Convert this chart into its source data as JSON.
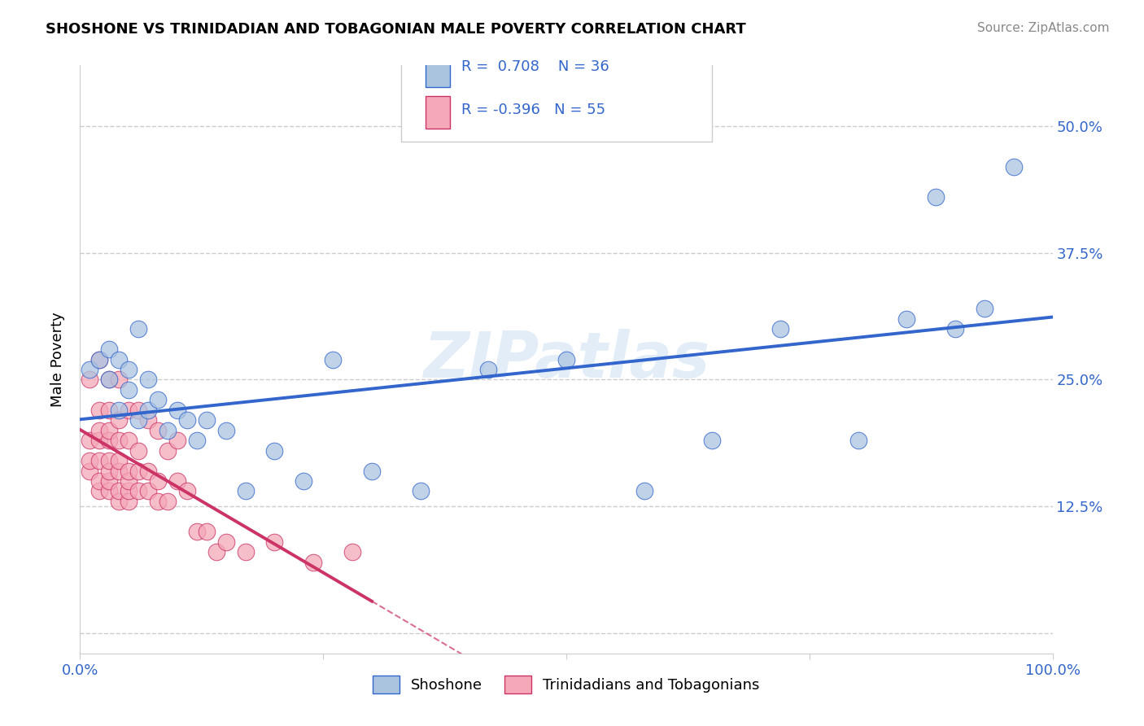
{
  "title": "SHOSHONE VS TRINIDADIAN AND TOBAGONIAN MALE POVERTY CORRELATION CHART",
  "source": "Source: ZipAtlas.com",
  "ylabel": "Male Poverty",
  "xlim": [
    0,
    1.0
  ],
  "ylim": [
    -0.02,
    0.56
  ],
  "yticks": [
    0.0,
    0.125,
    0.25,
    0.375,
    0.5
  ],
  "yticklabels": [
    "",
    "12.5%",
    "25.0%",
    "37.5%",
    "50.0%"
  ],
  "grid_color": "#cccccc",
  "background_color": "#ffffff",
  "shoshone_color": "#aac4e0",
  "trinidadian_color": "#f4a8b8",
  "shoshone_line_color": "#3366cc",
  "trinidadian_line_color": "#cc3366",
  "R_shoshone": 0.708,
  "N_shoshone": 36,
  "R_trinidadian": -0.396,
  "N_trinidadian": 55,
  "legend_label_1": "Shoshone",
  "legend_label_2": "Trinidadians and Tobagonians",
  "watermark": "ZIPatlas",
  "shoshone_x": [
    0.01,
    0.02,
    0.03,
    0.03,
    0.04,
    0.04,
    0.05,
    0.05,
    0.06,
    0.06,
    0.07,
    0.07,
    0.08,
    0.09,
    0.1,
    0.11,
    0.12,
    0.13,
    0.15,
    0.17,
    0.2,
    0.23,
    0.26,
    0.3,
    0.35,
    0.42,
    0.5,
    0.58,
    0.65,
    0.72,
    0.8,
    0.85,
    0.88,
    0.9,
    0.93,
    0.96
  ],
  "shoshone_y": [
    0.26,
    0.27,
    0.25,
    0.28,
    0.22,
    0.27,
    0.24,
    0.26,
    0.21,
    0.3,
    0.22,
    0.25,
    0.23,
    0.2,
    0.22,
    0.21,
    0.19,
    0.21,
    0.2,
    0.14,
    0.18,
    0.15,
    0.27,
    0.16,
    0.14,
    0.26,
    0.27,
    0.14,
    0.19,
    0.3,
    0.19,
    0.31,
    0.43,
    0.3,
    0.32,
    0.46
  ],
  "trinidadian_x": [
    0.01,
    0.01,
    0.01,
    0.01,
    0.02,
    0.02,
    0.02,
    0.02,
    0.02,
    0.02,
    0.02,
    0.03,
    0.03,
    0.03,
    0.03,
    0.03,
    0.03,
    0.03,
    0.03,
    0.04,
    0.04,
    0.04,
    0.04,
    0.04,
    0.04,
    0.04,
    0.05,
    0.05,
    0.05,
    0.05,
    0.05,
    0.05,
    0.06,
    0.06,
    0.06,
    0.06,
    0.07,
    0.07,
    0.07,
    0.08,
    0.08,
    0.08,
    0.09,
    0.09,
    0.1,
    0.1,
    0.11,
    0.12,
    0.13,
    0.14,
    0.15,
    0.17,
    0.2,
    0.24,
    0.28
  ],
  "trinidadian_y": [
    0.16,
    0.17,
    0.19,
    0.25,
    0.14,
    0.15,
    0.17,
    0.19,
    0.2,
    0.22,
    0.27,
    0.14,
    0.15,
    0.16,
    0.17,
    0.19,
    0.2,
    0.22,
    0.25,
    0.13,
    0.14,
    0.16,
    0.17,
    0.19,
    0.21,
    0.25,
    0.13,
    0.14,
    0.15,
    0.16,
    0.19,
    0.22,
    0.14,
    0.16,
    0.18,
    0.22,
    0.14,
    0.16,
    0.21,
    0.13,
    0.15,
    0.2,
    0.13,
    0.18,
    0.15,
    0.19,
    0.14,
    0.1,
    0.1,
    0.08,
    0.09,
    0.08,
    0.09,
    0.07,
    0.08
  ],
  "trini_line_solid_end": 0.3,
  "trini_line_dash_end": 0.55
}
